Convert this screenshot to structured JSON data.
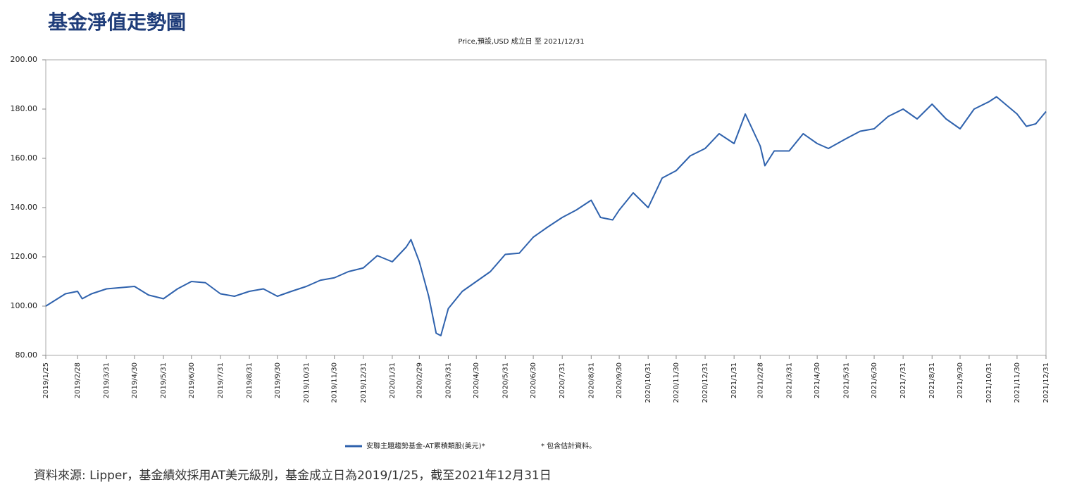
{
  "chart_data": {
    "type": "line",
    "title": "基金淨值走勢圖",
    "subtitle": "Price,預設,USD 成立日 至 2021/12/31",
    "source": "資料來源: Lipper，基金績效採用AT美元級別，基金成立日為2019/1/25，截至2021年12月31日",
    "note": "* 包含估計資料。",
    "x": [
      "2019/1/25",
      "2019/2/15",
      "2019/2/28",
      "2019/3/5",
      "2019/3/15",
      "2019/3/31",
      "2019/4/15",
      "2019/4/30",
      "2019/5/15",
      "2019/5/31",
      "2019/6/15",
      "2019/6/30",
      "2019/7/15",
      "2019/7/31",
      "2019/8/15",
      "2019/8/31",
      "2019/9/15",
      "2019/9/30",
      "2019/10/15",
      "2019/10/31",
      "2019/11/15",
      "2019/11/30",
      "2019/12/15",
      "2019/12/31",
      "2020/1/15",
      "2020/1/31",
      "2020/2/15",
      "2020/2/20",
      "2020/2/29",
      "2020/3/10",
      "2020/3/18",
      "2020/3/23",
      "2020/3/31",
      "2020/4/15",
      "2020/4/30",
      "2020/5/15",
      "2020/5/31",
      "2020/6/15",
      "2020/6/30",
      "2020/7/15",
      "2020/7/31",
      "2020/8/15",
      "2020/8/31",
      "2020/9/10",
      "2020/9/23",
      "2020/9/30",
      "2020/10/15",
      "2020/10/31",
      "2020/11/15",
      "2020/11/30",
      "2020/12/15",
      "2020/12/31",
      "2021/1/15",
      "2021/1/31",
      "2021/2/12",
      "2021/2/28",
      "2021/3/5",
      "2021/3/15",
      "2021/3/31",
      "2021/4/15",
      "2021/4/30",
      "2021/5/12",
      "2021/5/31",
      "2021/6/15",
      "2021/6/30",
      "2021/7/15",
      "2021/7/31",
      "2021/8/15",
      "2021/8/31",
      "2021/9/15",
      "2021/9/30",
      "2021/10/15",
      "2021/10/31",
      "2021/11/8",
      "2021/11/30",
      "2021/12/10",
      "2021/12/20",
      "2021/12/31"
    ],
    "series": [
      {
        "name": "安聯主題趨勢基金-AT累積類股(美元)*",
        "color": "#2f62ad",
        "values": [
          100,
          105,
          106,
          103,
          105,
          107,
          107.5,
          108,
          104.5,
          103,
          107,
          110,
          109.5,
          105,
          104,
          106,
          107,
          104,
          106,
          108,
          110.5,
          111.5,
          114,
          115.5,
          120.5,
          118,
          124,
          127,
          118,
          104,
          89,
          88,
          99,
          106,
          110,
          114,
          121,
          121.5,
          128,
          132,
          136,
          139,
          143,
          136,
          135,
          139,
          146,
          140,
          152,
          155,
          161,
          164,
          170,
          166,
          178,
          165,
          157,
          163,
          163,
          170,
          166,
          164,
          168,
          171,
          172,
          177,
          180,
          176,
          182,
          176,
          172,
          180,
          183,
          185,
          178,
          173,
          174,
          179
        ]
      }
    ],
    "xlim": [
      "2019/1/25",
      "2021/12/31"
    ],
    "xticks": [
      "2019/1/25",
      "2019/2/28",
      "2019/3/31",
      "2019/4/30",
      "2019/5/31",
      "2019/6/30",
      "2019/7/31",
      "2019/8/31",
      "2019/9/30",
      "2019/10/31",
      "2019/11/30",
      "2019/12/31",
      "2020/1/31",
      "2020/2/29",
      "2020/3/31",
      "2020/4/30",
      "2020/5/31",
      "2020/6/30",
      "2020/7/31",
      "2020/8/31",
      "2020/9/30",
      "2020/10/31",
      "2020/11/30",
      "2020/12/31",
      "2021/1/31",
      "2021/2/28",
      "2021/3/31",
      "2021/4/30",
      "2021/5/31",
      "2021/6/30",
      "2021/7/31",
      "2021/8/31",
      "2021/9/30",
      "2021/10/31",
      "2021/11/30",
      "2021/12/31"
    ],
    "ylim": [
      80,
      200
    ],
    "yticks": [
      {
        "value": 80,
        "label": "80.00"
      },
      {
        "value": 100,
        "label": "100.00"
      },
      {
        "value": 120,
        "label": "120.00"
      },
      {
        "value": 140,
        "label": "140.00"
      },
      {
        "value": 160,
        "label": "160.00"
      },
      {
        "value": 180,
        "label": "180.00"
      },
      {
        "value": 200,
        "label": "200.00"
      }
    ],
    "grid": false
  }
}
